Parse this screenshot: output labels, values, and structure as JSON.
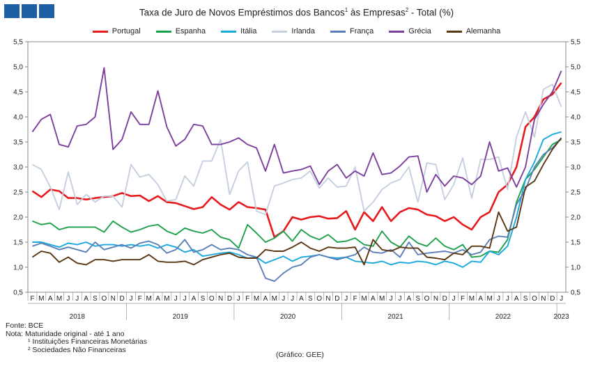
{
  "header": {
    "title_main": "Taxa de Juro de Novos Empréstimos dos Bancos",
    "title_sup1": "1",
    "title_mid": " às Empresas",
    "title_sup2": "2",
    "title_end": " - Total (%)"
  },
  "footer": {
    "source": "Fonte: BCE",
    "note": "Nota: Maturidade original - até 1 ano",
    "note1": "¹ Instituições Financeiras Monetárias",
    "note2": "² Sociedades Não Financeiras",
    "credit": "(Gráfico: GEE)"
  },
  "colors": {
    "Portugal": "#e8191c",
    "Espanha": "#1ea04a",
    "Itália": "#1aa8e0",
    "Irlanda": "#c5cfe0",
    "França": "#5b7fb8",
    "Grécia": "#7c3f9e",
    "Alemanha": "#5a3512"
  },
  "chart_data": {
    "type": "line",
    "title": "Taxa de Juro de Novos Empréstimos dos Bancos¹ às Empresas² - Total (%)",
    "ylim": [
      0.5,
      5.5
    ],
    "yticks": [
      "0,5",
      "1,0",
      "1,5",
      "2,0",
      "2,5",
      "3,0",
      "3,5",
      "4,0",
      "4,5",
      "5,0",
      "5,5"
    ],
    "grid": false,
    "legend_position": "top",
    "month_labels": [
      "F",
      "M",
      "A",
      "M",
      "J",
      "J",
      "A",
      "S",
      "O",
      "N",
      "D",
      "J",
      "F",
      "M",
      "A",
      "M",
      "J",
      "J",
      "A",
      "S",
      "O",
      "N",
      "D",
      "J",
      "F",
      "M",
      "A",
      "M",
      "J",
      "J",
      "A",
      "S",
      "O",
      "N",
      "D",
      "J",
      "F",
      "M",
      "A",
      "M",
      "J",
      "J",
      "A",
      "S",
      "O",
      "N",
      "D",
      "J",
      "F",
      "M",
      "A",
      "M",
      "J",
      "J",
      "A",
      "S",
      "O",
      "N",
      "D",
      "J"
    ],
    "years": [
      "2018",
      "2019",
      "2020",
      "2021",
      "2022",
      "2023"
    ],
    "x": [
      "2018-02",
      "2018-03",
      "2018-04",
      "2018-05",
      "2018-06",
      "2018-07",
      "2018-08",
      "2018-09",
      "2018-10",
      "2018-11",
      "2018-12",
      "2019-01",
      "2019-02",
      "2019-03",
      "2019-04",
      "2019-05",
      "2019-06",
      "2019-07",
      "2019-08",
      "2019-09",
      "2019-10",
      "2019-11",
      "2019-12",
      "2020-01",
      "2020-02",
      "2020-03",
      "2020-04",
      "2020-05",
      "2020-06",
      "2020-07",
      "2020-08",
      "2020-09",
      "2020-10",
      "2020-11",
      "2020-12",
      "2021-01",
      "2021-02",
      "2021-03",
      "2021-04",
      "2021-05",
      "2021-06",
      "2021-07",
      "2021-08",
      "2021-09",
      "2021-10",
      "2021-11",
      "2021-12",
      "2022-01",
      "2022-02",
      "2022-03",
      "2022-04",
      "2022-05",
      "2022-06",
      "2022-07",
      "2022-08",
      "2022-09",
      "2022-10",
      "2022-11",
      "2022-12",
      "2023-01"
    ],
    "series": [
      {
        "name": "Portugal",
        "values": [
          2.52,
          2.4,
          2.55,
          2.52,
          2.38,
          2.38,
          2.35,
          2.38,
          2.4,
          2.42,
          2.48,
          2.42,
          2.43,
          2.32,
          2.42,
          2.3,
          2.28,
          2.22,
          2.16,
          2.2,
          2.4,
          2.25,
          2.15,
          2.3,
          2.2,
          2.18,
          2.15,
          1.6,
          1.72,
          2.0,
          1.95,
          2.0,
          2.02,
          1.97,
          1.98,
          2.12,
          1.75,
          2.1,
          1.92,
          2.2,
          1.92,
          2.1,
          2.18,
          2.15,
          2.05,
          2.02,
          1.92,
          2.0,
          1.85,
          1.75,
          2.0,
          2.1,
          2.5,
          2.65,
          3.0,
          3.8,
          4.0,
          4.35,
          4.45,
          4.68
        ]
      },
      {
        "name": "Espanha",
        "values": [
          1.92,
          1.85,
          1.88,
          1.75,
          1.8,
          1.8,
          1.8,
          1.8,
          1.7,
          1.92,
          1.8,
          1.7,
          1.75,
          1.82,
          1.85,
          1.72,
          1.65,
          1.78,
          1.72,
          1.68,
          1.75,
          1.6,
          1.55,
          1.38,
          1.85,
          1.68,
          1.5,
          1.58,
          1.72,
          1.52,
          1.75,
          1.62,
          1.55,
          1.65,
          1.5,
          1.52,
          1.58,
          1.45,
          1.42,
          1.72,
          1.5,
          1.4,
          1.62,
          1.48,
          1.42,
          1.58,
          1.42,
          1.35,
          1.45,
          1.2,
          1.22,
          1.32,
          1.3,
          1.55,
          2.3,
          2.75,
          2.95,
          3.2,
          3.45,
          3.55
        ]
      },
      {
        "name": "Itália",
        "values": [
          1.5,
          1.5,
          1.45,
          1.4,
          1.48,
          1.45,
          1.5,
          1.42,
          1.45,
          1.45,
          1.42,
          1.45,
          1.42,
          1.45,
          1.38,
          1.45,
          1.4,
          1.3,
          1.35,
          1.22,
          1.25,
          1.28,
          1.3,
          1.25,
          1.18,
          1.2,
          1.08,
          1.15,
          1.22,
          1.12,
          1.2,
          1.22,
          1.25,
          1.2,
          1.18,
          1.2,
          1.12,
          1.1,
          1.08,
          1.12,
          1.05,
          1.1,
          1.08,
          1.12,
          1.1,
          1.05,
          1.12,
          1.08,
          1.0,
          1.12,
          1.1,
          1.32,
          1.25,
          1.42,
          2.0,
          2.75,
          3.1,
          3.55,
          3.65,
          3.7
        ]
      },
      {
        "name": "Irlanda",
        "values": [
          3.05,
          2.95,
          2.6,
          2.15,
          2.9,
          2.25,
          2.45,
          2.3,
          2.42,
          2.42,
          2.2,
          3.05,
          2.8,
          2.85,
          2.65,
          2.32,
          2.35,
          2.82,
          2.62,
          3.12,
          3.12,
          3.55,
          2.45,
          2.92,
          3.1,
          2.12,
          2.05,
          2.62,
          2.68,
          2.75,
          2.78,
          2.92,
          2.58,
          2.78,
          2.6,
          2.62,
          3.0,
          2.12,
          2.3,
          2.55,
          2.68,
          2.75,
          3.0,
          2.3,
          3.08,
          3.05,
          2.35,
          2.65,
          3.18,
          2.38,
          3.15,
          3.15,
          3.2,
          2.55,
          3.6,
          4.1,
          3.6,
          4.55,
          4.65,
          4.2
        ]
      },
      {
        "name": "França",
        "values": [
          1.42,
          1.48,
          1.42,
          1.35,
          1.4,
          1.35,
          1.3,
          1.5,
          1.35,
          1.4,
          1.45,
          1.38,
          1.48,
          1.52,
          1.45,
          1.28,
          1.35,
          1.55,
          1.3,
          1.35,
          1.45,
          1.35,
          1.38,
          1.35,
          1.25,
          1.2,
          0.78,
          0.72,
          0.88,
          1.0,
          1.05,
          1.2,
          1.25,
          1.2,
          1.15,
          1.2,
          1.25,
          1.4,
          1.3,
          1.28,
          1.35,
          1.2,
          1.5,
          1.25,
          1.28,
          1.3,
          1.32,
          1.28,
          1.35,
          1.25,
          1.3,
          1.55,
          1.62,
          1.6,
          2.25,
          2.55,
          3.0,
          3.25,
          3.38,
          3.58
        ]
      },
      {
        "name": "Grécia",
        "values": [
          3.7,
          3.95,
          4.05,
          3.45,
          3.4,
          3.82,
          3.85,
          4.0,
          4.98,
          3.35,
          3.55,
          4.1,
          3.85,
          3.85,
          4.52,
          3.8,
          3.42,
          3.55,
          3.85,
          3.82,
          3.45,
          3.45,
          3.5,
          3.58,
          3.45,
          3.38,
          2.92,
          3.45,
          2.88,
          2.92,
          2.95,
          3.02,
          2.65,
          2.92,
          3.05,
          2.78,
          2.92,
          2.82,
          3.28,
          2.85,
          2.88,
          3.02,
          3.2,
          3.22,
          2.5,
          2.85,
          2.62,
          2.82,
          2.78,
          2.65,
          2.82,
          3.5,
          2.92,
          2.98,
          2.6,
          3.0,
          3.95,
          4.25,
          4.5,
          4.92
        ]
      },
      {
        "name": "Alemanha",
        "values": [
          1.2,
          1.32,
          1.28,
          1.1,
          1.2,
          1.08,
          1.05,
          1.15,
          1.15,
          1.12,
          1.15,
          1.15,
          1.15,
          1.25,
          1.12,
          1.1,
          1.1,
          1.12,
          1.05,
          1.15,
          1.2,
          1.25,
          1.28,
          1.2,
          1.18,
          1.18,
          1.35,
          1.32,
          1.32,
          1.4,
          1.5,
          1.38,
          1.32,
          1.4,
          1.38,
          1.38,
          1.4,
          1.05,
          1.55,
          1.35,
          1.32,
          1.4,
          1.38,
          1.38,
          1.2,
          1.18,
          1.15,
          1.28,
          1.25,
          1.42,
          1.42,
          1.38,
          2.1,
          1.72,
          1.8,
          2.6,
          2.72,
          3.05,
          3.35,
          3.58
        ]
      }
    ]
  }
}
